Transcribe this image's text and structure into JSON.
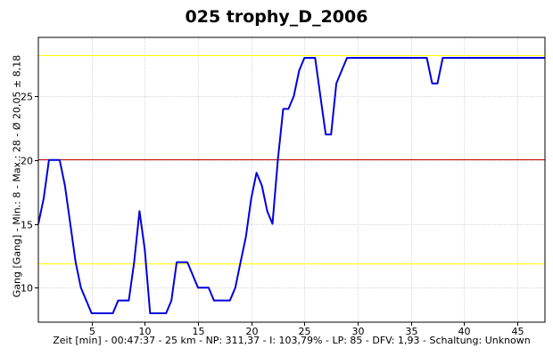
{
  "chart_data": {
    "type": "line",
    "title": "025 trophy_D_2006",
    "xlabel": "Zeit [min] - 00:47:37 - 25 km - NP: 311,37 - I: 103,79% - LP: 85 - DFV: 1,93 - Schaltung: Unknown",
    "ylabel": "Gang [Gang] - Min.: 8 - Max.: 28 - Ø 20,05 ± 8,18",
    "xlim": [
      0,
      47.6
    ],
    "ylim": [
      7.3,
      29.6
    ],
    "xticks": [
      5,
      10,
      15,
      20,
      25,
      30,
      35,
      40,
      45
    ],
    "yticks": [
      10,
      15,
      20,
      25
    ],
    "grid": true,
    "reference_lines": [
      {
        "y": 28.2,
        "color": "#ffff00"
      },
      {
        "y": 20.05,
        "color": "#cc0000"
      },
      {
        "y": 11.87,
        "color": "#ffff00"
      }
    ],
    "series": [
      {
        "color": "#0000dd",
        "x": [
          0,
          0.5,
          1,
          1.5,
          2,
          2.5,
          3,
          3.5,
          4,
          4.5,
          5,
          5.5,
          6,
          6.5,
          7,
          7.5,
          8,
          8.5,
          9,
          9.5,
          10,
          10.5,
          11,
          11.5,
          12,
          12.5,
          13,
          13.5,
          14,
          14.5,
          15,
          15.5,
          16,
          16.5,
          17,
          17.5,
          18,
          18.5,
          19,
          19.5,
          20,
          20.5,
          21,
          21.5,
          22,
          22.5,
          23,
          23.5,
          24,
          24.5,
          25,
          25.5,
          26,
          26.5,
          27,
          27.5,
          28,
          28.5,
          29,
          29.5,
          30,
          31,
          32,
          33,
          34,
          35,
          36,
          36.5,
          37,
          37.5,
          38,
          38.5,
          39,
          40,
          41,
          42,
          43,
          44,
          45,
          46,
          47.6
        ],
        "y": [
          15,
          17,
          20,
          20,
          20,
          18,
          15,
          12,
          10,
          9,
          8,
          8,
          8,
          8,
          8,
          9,
          9,
          9,
          12,
          16,
          13,
          8,
          8,
          8,
          8,
          9,
          12,
          12,
          12,
          11,
          10,
          10,
          10,
          9,
          9,
          9,
          9,
          10,
          12,
          14,
          17,
          19,
          18,
          16,
          15,
          20,
          24,
          24,
          25,
          27,
          28,
          28,
          28,
          25,
          22,
          22,
          26,
          27,
          28,
          28,
          28,
          28,
          28,
          28,
          28,
          28,
          28,
          28,
          26,
          26,
          28,
          28,
          28,
          28,
          28,
          28,
          28,
          28,
          28,
          28,
          28
        ]
      }
    ]
  }
}
